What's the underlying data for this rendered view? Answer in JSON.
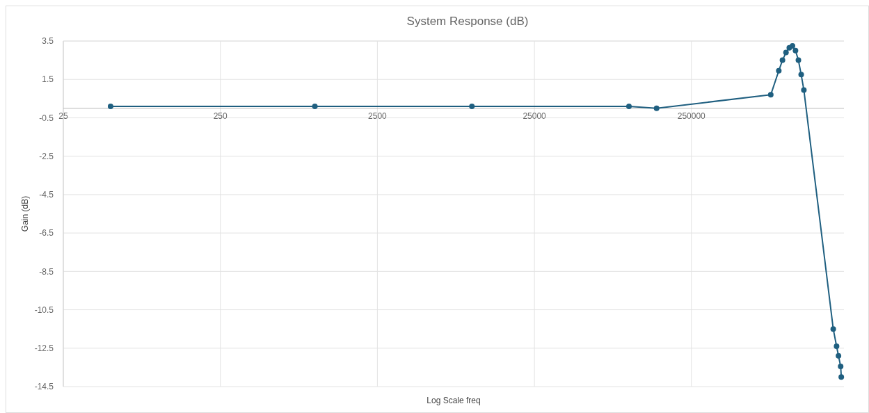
{
  "chart_data": {
    "type": "line",
    "title": "System Response (dB)",
    "xlabel": "Log Scale freq",
    "ylabel": "Gain (dB)",
    "log": "x",
    "x": [
      50,
      1000,
      10000,
      100000,
      150000,
      800000,
      900000,
      950000,
      1000000,
      1050000,
      1100000,
      1150000,
      1200000,
      1250000,
      1300000,
      2000000,
      2100000,
      2160000,
      2230000,
      2250000
    ],
    "series": [
      {
        "color": "#1f5f80",
        "values": [
          0.1,
          0.1,
          0.1,
          0.1,
          0,
          0.7,
          1.95,
          2.5,
          2.9,
          3.15,
          3.25,
          3,
          2.5,
          1.75,
          0.95,
          -11.5,
          -12.4,
          -12.9,
          -13.45,
          -14
        ]
      }
    ],
    "xlim": [
      25,
      2340000
    ],
    "xticks": [
      25,
      250,
      2500,
      25000,
      250000
    ],
    "ylim": [
      -14.5,
      3.5
    ],
    "yticks": [
      3.5,
      1.5,
      -0.5,
      -2.5,
      -4.5,
      -6.5,
      -8.5,
      -10.5,
      -12.5,
      -14.5
    ],
    "grid": true,
    "marker": "circle",
    "line_style": "solid"
  }
}
